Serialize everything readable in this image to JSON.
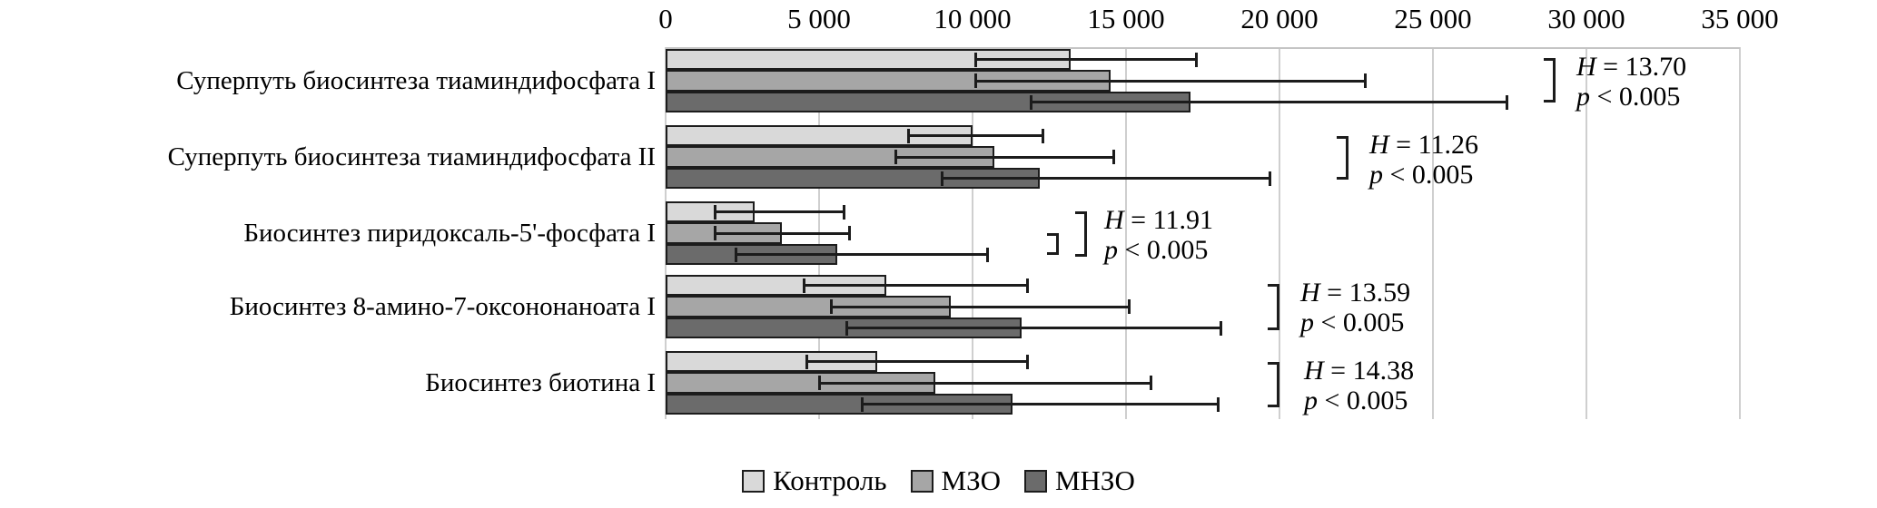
{
  "chart_data": {
    "type": "bar",
    "orientation": "horizontal",
    "title": "",
    "x_axis": {
      "min": 0,
      "max": 35000,
      "tick_step": 5000,
      "tick_labels": [
        "0",
        "5 000",
        "10 000",
        "15 000",
        "20 000",
        "25 000",
        "30 000",
        "35 000"
      ],
      "grid": true,
      "axis_position": "top"
    },
    "series": [
      {
        "name": "Контроль",
        "color": "#d9d9d9"
      },
      {
        "name": "МЗО",
        "color": "#a6a6a6"
      },
      {
        "name": "МНЗО",
        "color": "#6b6b6b"
      }
    ],
    "groups": [
      {
        "label": "Суперпуть биосинтеза тиаминдифосфата I",
        "values": [
          13200,
          14500,
          17100
        ],
        "err_low": [
          10100,
          10100,
          11900
        ],
        "err_high": [
          17300,
          22800,
          27400
        ],
        "stat": {
          "h_label": "H",
          "h_value": "= 13.70",
          "p_label": "p",
          "p_value": "< 0.005"
        }
      },
      {
        "label": "Суперпуть биосинтеза тиаминдифосфата II",
        "values": [
          10000,
          10700,
          12200
        ],
        "err_low": [
          7900,
          7500,
          9000
        ],
        "err_high": [
          12300,
          14600,
          19700
        ],
        "stat": {
          "h_label": "H",
          "h_value": "= 11.26",
          "p_label": "p",
          "p_value": "< 0.005"
        }
      },
      {
        "label": "Биосинтез пиридоксаль-5'-фосфата I",
        "values": [
          2900,
          3800,
          5600
        ],
        "err_low": [
          1600,
          1600,
          2300
        ],
        "err_high": [
          5800,
          6000,
          10500
        ],
        "stat": {
          "h_label": "H",
          "h_value": "= 11.91",
          "p_label": "p",
          "p_value": "< 0.005"
        }
      },
      {
        "label": "Биосинтез 8-амино-7-оксононаноата I",
        "values": [
          7200,
          9300,
          11600
        ],
        "err_low": [
          4500,
          5400,
          5900
        ],
        "err_high": [
          11800,
          15100,
          18100
        ],
        "stat": {
          "h_label": "H",
          "h_value": "= 13.59",
          "p_label": "p",
          "p_value": "< 0.005"
        }
      },
      {
        "label": "Биосинтез биотина I",
        "values": [
          6900,
          8800,
          11300
        ],
        "err_low": [
          4600,
          5000,
          6400
        ],
        "err_high": [
          11800,
          15800,
          18000
        ],
        "stat": {
          "h_label": "H",
          "h_value": "= 14.38",
          "p_label": "p",
          "p_value": "< 0.005"
        }
      }
    ],
    "legend": {
      "position": "bottom",
      "items": [
        "Контроль",
        "МЗО",
        "МНЗО"
      ]
    }
  }
}
